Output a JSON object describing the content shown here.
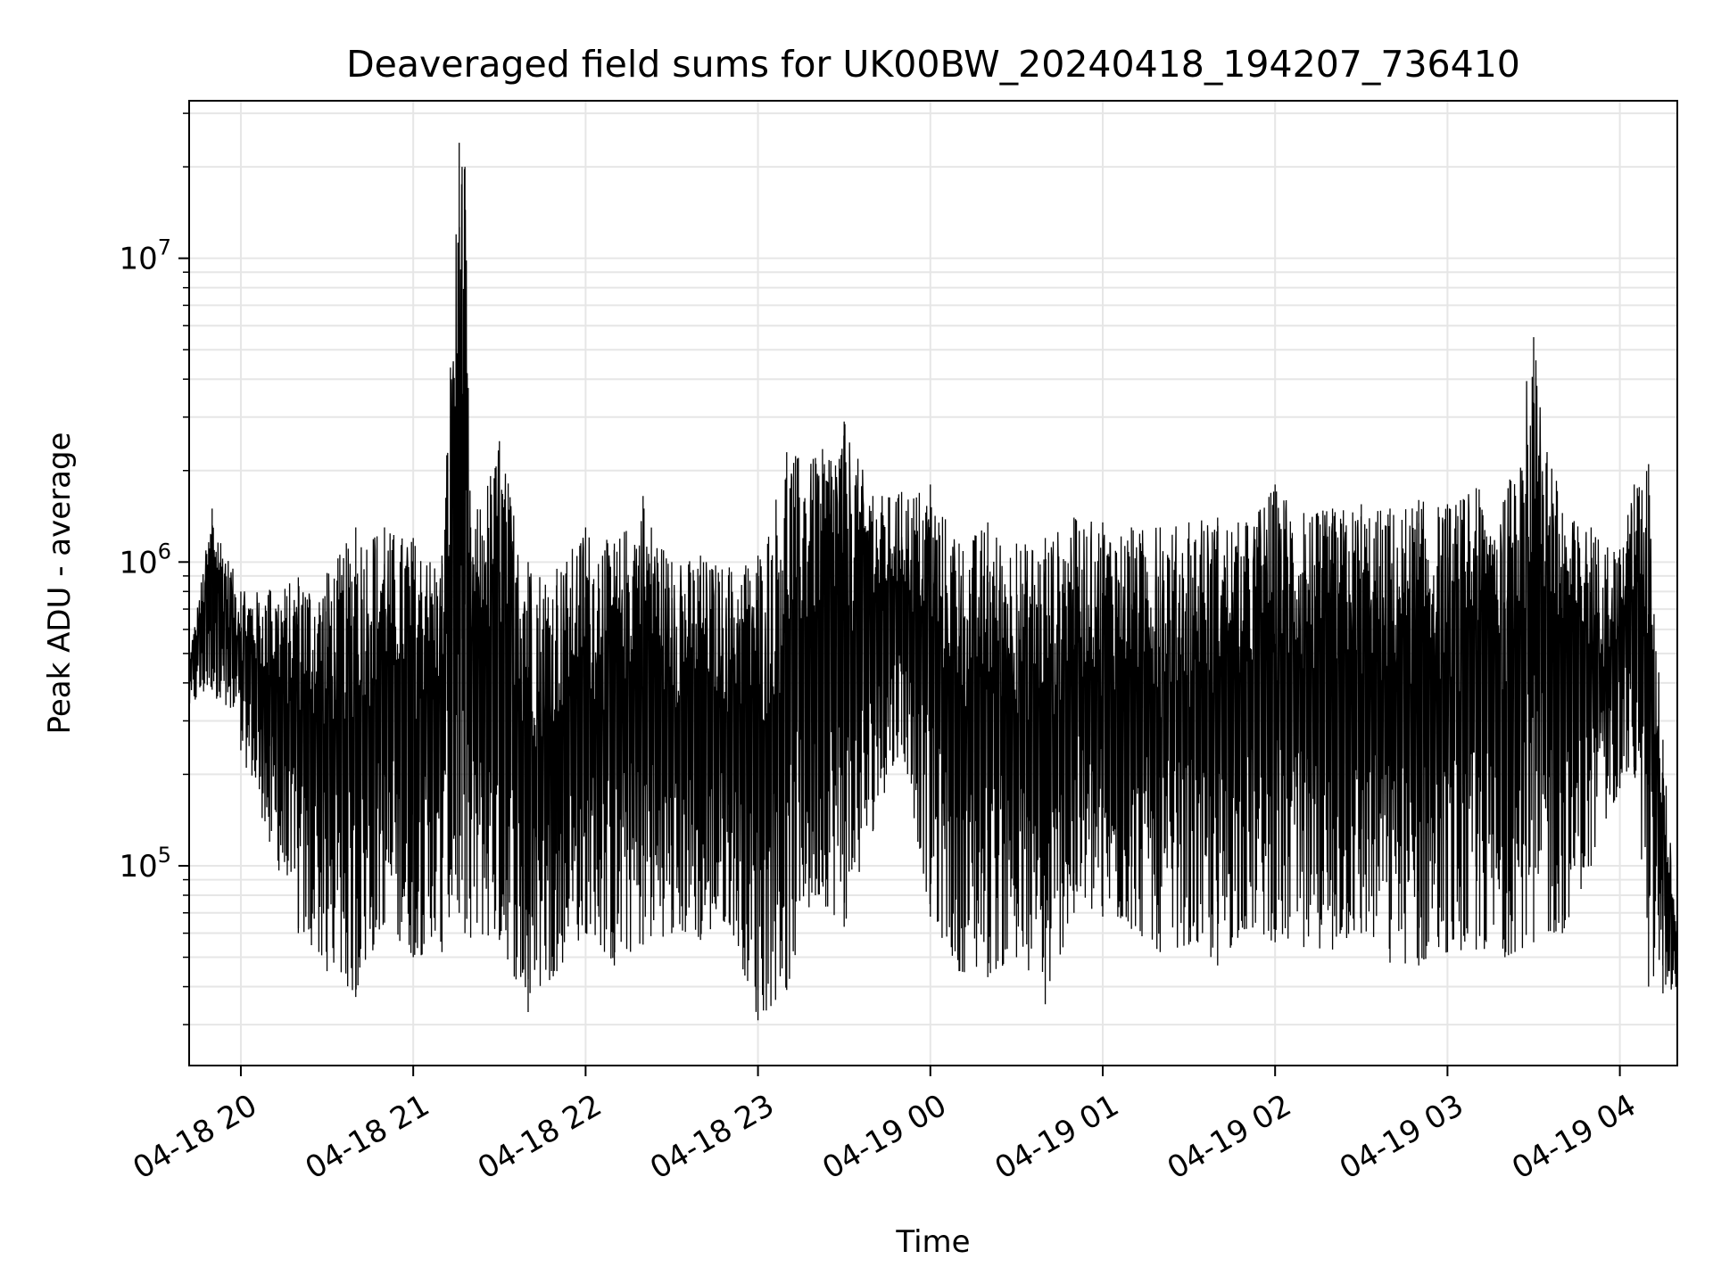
{
  "chart_data": {
    "type": "line",
    "title": "Deaveraged field sums for UK00BW_20240418_194207_736410",
    "xlabel": "Time",
    "ylabel": "Peak ADU - average",
    "yscale": "log",
    "ylim": [
      22000,
      33000000
    ],
    "xlim": [
      "2024-04-18 19:42:00",
      "2024-04-19 04:20:00"
    ],
    "grid": true,
    "line_color": "#000000",
    "x_ticks": [
      "04-18 20",
      "04-18 21",
      "04-18 22",
      "04-18 23",
      "04-19 00",
      "04-19 01",
      "04-19 02",
      "04-19 03",
      "04-19 04"
    ],
    "y_ticks": [
      {
        "value": 100000,
        "base": "10",
        "exp": "5"
      },
      {
        "value": 1000000,
        "base": "10",
        "exp": "6"
      },
      {
        "value": 10000000,
        "base": "10",
        "exp": "7"
      }
    ],
    "series": [
      {
        "x": [
          "2024-04-18 19:42",
          "2024-04-18 19:50",
          "2024-04-18 20:00",
          "2024-04-18 20:10",
          "2024-04-18 20:20",
          "2024-04-18 20:30",
          "2024-04-18 20:40",
          "2024-04-18 20:50",
          "2024-04-18 21:00",
          "2024-04-18 21:10",
          "2024-04-18 21:16",
          "2024-04-18 21:17",
          "2024-04-18 21:18",
          "2024-04-18 21:20",
          "2024-04-18 21:30",
          "2024-04-18 21:40",
          "2024-04-18 21:50",
          "2024-04-18 22:00",
          "2024-04-18 22:10",
          "2024-04-18 22:20",
          "2024-04-18 22:30",
          "2024-04-18 22:40",
          "2024-04-18 22:50",
          "2024-04-18 23:00",
          "2024-04-18 23:10",
          "2024-04-18 23:20",
          "2024-04-18 23:30",
          "2024-04-18 23:40",
          "2024-04-18 23:50",
          "2024-04-19 00:00",
          "2024-04-19 00:10",
          "2024-04-19 00:20",
          "2024-04-19 00:30",
          "2024-04-19 00:40",
          "2024-04-19 00:50",
          "2024-04-19 01:00",
          "2024-04-19 01:10",
          "2024-04-19 01:20",
          "2024-04-19 01:30",
          "2024-04-19 01:40",
          "2024-04-19 01:50",
          "2024-04-19 02:00",
          "2024-04-19 02:10",
          "2024-04-19 02:20",
          "2024-04-19 02:30",
          "2024-04-19 02:40",
          "2024-04-19 02:50",
          "2024-04-19 03:00",
          "2024-04-19 03:10",
          "2024-04-19 03:20",
          "2024-04-19 03:30",
          "2024-04-19 03:40",
          "2024-04-19 03:50",
          "2024-04-19 04:00",
          "2024-04-19 04:05",
          "2024-04-19 04:10",
          "2024-04-19 04:15",
          "2024-04-19 04:20"
        ],
        "high": [
          480000,
          1500000,
          800000,
          810000,
          890000,
          920000,
          1300000,
          1300000,
          1200000,
          1050000,
          24000000,
          20000000,
          20000000,
          1300000,
          2500000,
          1000000,
          950000,
          1300000,
          1150000,
          1650000,
          1000000,
          1050000,
          960000,
          1050000,
          2300000,
          2200000,
          2900000,
          1650000,
          1700000,
          1800000,
          1150000,
          1350000,
          1150000,
          1200000,
          1400000,
          1350000,
          1300000,
          1300000,
          1350000,
          1400000,
          1350000,
          1800000,
          1450000,
          1500000,
          1550000,
          1500000,
          1600000,
          1550000,
          1750000,
          1600000,
          5500000,
          1450000,
          1300000,
          1100000,
          1800000,
          2100000,
          260000,
          60000
        ],
        "low": [
          330000,
          380000,
          240000,
          120000,
          60000,
          45000,
          37000,
          65000,
          50000,
          52000,
          70000,
          90000,
          60000,
          58000,
          57000,
          33000,
          45000,
          60000,
          47000,
          55000,
          60000,
          57000,
          65000,
          31000,
          39000,
          80000,
          63000,
          130000,
          250000,
          68000,
          45000,
          43000,
          50000,
          35000,
          70000,
          68000,
          62000,
          52000,
          55000,
          47000,
          62000,
          56000,
          54000,
          53000,
          60000,
          48000,
          47000,
          52000,
          53000,
          50000,
          56000,
          60000,
          100000,
          180000,
          200000,
          40000,
          38000,
          40000
        ]
      }
    ]
  }
}
